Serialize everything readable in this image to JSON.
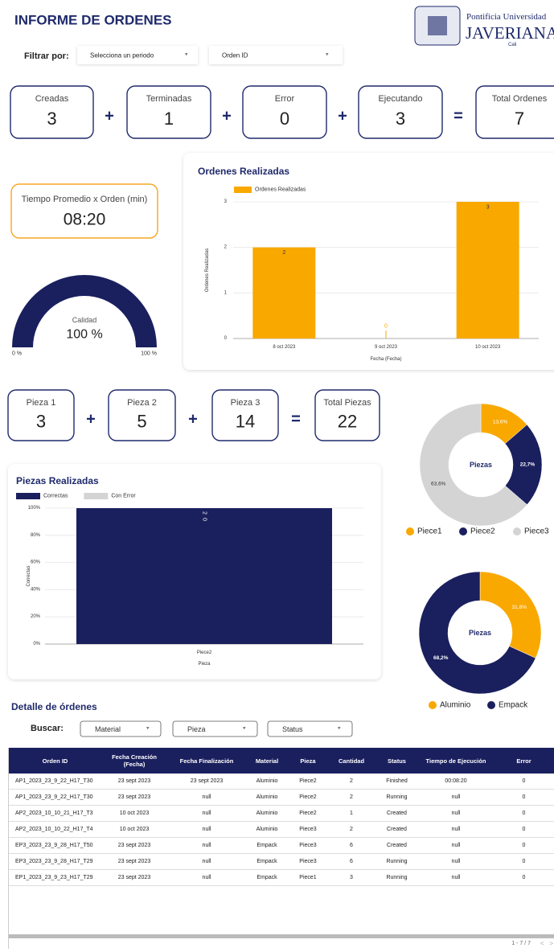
{
  "header": {
    "title": "INFORME DE ORDENES",
    "logo": [
      "Pontificia Universidad",
      "JAVERIANA",
      "Cali"
    ]
  },
  "filters": {
    "label": "Filtrar por:",
    "dropdowns": [
      "Selecciona un periodo",
      "Orden ID"
    ]
  },
  "order_kpis": {
    "items": [
      {
        "label": "Creadas",
        "value": 3
      },
      {
        "label": "Terminadas",
        "value": 1
      },
      {
        "label": "Error",
        "value": 0
      },
      {
        "label": "Ejecutando",
        "value": 3
      },
      {
        "label": "Total Ordenes",
        "value": 7
      }
    ],
    "operators": [
      "+",
      "+",
      "+",
      "="
    ]
  },
  "avg_time": {
    "label": "Tiempo Promedio x Orden (min)",
    "value": "08:20"
  },
  "piece_kpis": {
    "items": [
      {
        "label": "Pieza 1",
        "value": 3
      },
      {
        "label": "Pieza 2",
        "value": 5
      },
      {
        "label": "Pieza 3",
        "value": 14
      },
      {
        "label": "Total Piezas",
        "value": 22
      }
    ],
    "operators": [
      "+",
      "+",
      "="
    ]
  },
  "chart_data": [
    {
      "type": "gauge",
      "label": "Calidad",
      "value": 100,
      "value_label": "100 %",
      "range": [
        {
          "value": 0,
          "label": "0 %"
        },
        {
          "value": 100,
          "label": "100 %"
        }
      ],
      "color": "#1a1f5e"
    },
    {
      "type": "bar",
      "title": "Ordenes Realizadas",
      "series": [
        {
          "name": "Ordenes Realizadas",
          "color": "#f9a800",
          "values": [
            2,
            0,
            3
          ]
        }
      ],
      "categories": [
        "8 oct 2023",
        "9 oct 2023",
        "10 oct 2023"
      ],
      "ylabel": "Ordenes Realizadas",
      "xlabel": "Fecha (Fecha)",
      "ylim": [
        0,
        3
      ],
      "yticks": [
        0,
        1,
        2,
        3
      ],
      "grid": true
    },
    {
      "type": "donut",
      "center_label": "Piezas",
      "categories": [
        "Piece1",
        "Piece2",
        "Piece3"
      ],
      "values": [
        13.6,
        22.7,
        63.6
      ],
      "value_labels": [
        "13,6%",
        "22,7%",
        "63,6%"
      ],
      "colors": [
        "#f9a800",
        "#1a1f5e",
        "#d4d4d4"
      ]
    },
    {
      "type": "bar",
      "stack": "percent",
      "title": "Piezas Realizadas",
      "series": [
        {
          "name": "Correctas",
          "color": "#1a1f5e",
          "values": [
            2
          ]
        },
        {
          "name": "Con Error",
          "color": "#d4d4d4",
          "values": [
            0
          ]
        }
      ],
      "categories": [
        "Piece2"
      ],
      "ylabel": "Correctas",
      "xlabel": "Pieza",
      "ylim": [
        0,
        100
      ],
      "yticks": [
        {
          "value": 0,
          "label": "0%"
        },
        {
          "value": 20,
          "label": "20%"
        },
        {
          "value": 40,
          "label": "40%"
        },
        {
          "value": 60,
          "label": "60%"
        },
        {
          "value": 80,
          "label": "80%"
        },
        {
          "value": 100,
          "label": "100%"
        }
      ],
      "grid": true
    },
    {
      "type": "donut",
      "center_label": "Piezas",
      "categories": [
        "Aluminio",
        "Empack"
      ],
      "values": [
        31.8,
        68.2
      ],
      "value_labels": [
        "31,8%",
        "68,2%"
      ],
      "colors": [
        "#f9a800",
        "#1a1f5e"
      ]
    }
  ],
  "details": {
    "title": "Detalle de órdenes",
    "search_label": "Buscar:",
    "dropdowns": [
      "Material",
      "Pieza",
      "Status"
    ],
    "columns": [
      "Orden ID",
      "Fecha Creación (Fecha)",
      "Fecha Finalización",
      "Material",
      "Pieza",
      "Cantidad",
      "Status",
      "Tiempo de Ejecución",
      "Error"
    ],
    "rows": [
      [
        "AP1_2023_23_9_22_H17_T30",
        "23 sept 2023",
        "23 sept 2023",
        "Aluminio",
        "Piece2",
        "2",
        "Finished",
        "00:08:20",
        "0"
      ],
      [
        "AP1_2023_23_9_22_H17_T30",
        "23 sept 2023",
        "null",
        "Aluminio",
        "Piece2",
        "2",
        "Running",
        "null",
        "0"
      ],
      [
        "AP2_2023_10_10_21_H17_T3",
        "10 oct 2023",
        "null",
        "Aluminio",
        "Piece2",
        "1",
        "Created",
        "null",
        "0"
      ],
      [
        "AP2_2023_10_10_22_H17_T4",
        "10 oct 2023",
        "null",
        "Aluminio",
        "Piece3",
        "2",
        "Created",
        "null",
        "0"
      ],
      [
        "EP3_2023_23_9_28_H17_T50",
        "23 sept 2023",
        "null",
        "Empack",
        "Piece3",
        "6",
        "Created",
        "null",
        "0"
      ],
      [
        "EP3_2023_23_9_28_H17_T29",
        "23 sept 2023",
        "null",
        "Empack",
        "Piece3",
        "6",
        "Running",
        "null",
        "0"
      ],
      [
        "EP1_2023_23_9_23_H17_T29",
        "23 sept 2023",
        "null",
        "Empack",
        "Piece1",
        "3",
        "Running",
        "null",
        "0"
      ]
    ],
    "pagination": "1 - 7 / 7"
  }
}
